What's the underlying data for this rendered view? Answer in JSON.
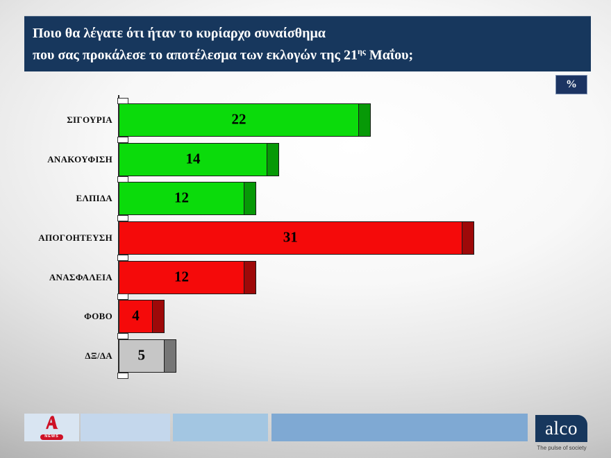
{
  "header": {
    "title_line1": "Ποιο θα λέγατε ότι ήταν το κυρίαρχο συναίσθημα",
    "title_line2_pre": "που σας προκάλεσε το αποτέλεσμα των εκλογών της 21",
    "title_line2_sup": "ης",
    "title_line2_post": " Μαΐου;",
    "bg_color": "#17375d",
    "text_color": "#ffffff"
  },
  "percent_badge": {
    "label": "%",
    "bg_color": "#1c3462"
  },
  "chart_data": {
    "type": "bar",
    "orientation": "horizontal",
    "title": "",
    "categories": [
      "ΣΙΓΟΥΡΙΑ",
      "ΑΝΑΚΟΥΦΙΣΗ",
      "ΕΛΠΙΔΑ",
      "ΑΠΟΓΟΗΤΕΥΣΗ",
      "ΑΝΑΣΦΑΛΕΙΑ",
      "ΦΟΒΟ",
      "ΔΞ/ΔΑ"
    ],
    "values": [
      22,
      14,
      12,
      31,
      12,
      4,
      5
    ],
    "unit": "%",
    "xlim": [
      0,
      31
    ],
    "grid": false,
    "legend": false,
    "data_labels": "inside-center, bold black",
    "bar_colors": [
      "#0bdb0b",
      "#0bdb0b",
      "#0bdb0b",
      "#f50a0a",
      "#f50a0a",
      "#f50a0a",
      "#c6c6c6"
    ],
    "cap_colors": [
      "#079907",
      "#079907",
      "#079907",
      "#9e0909",
      "#9e0909",
      "#9e0909",
      "#767676"
    ]
  },
  "footer": {
    "alpha_news": {
      "badge_text": "NEWS",
      "logo_color": "#ce1126",
      "box_color": "#d9e5f2"
    },
    "bars": [
      {
        "color": "#c4d7ec"
      },
      {
        "color": "#a3c6e2"
      },
      {
        "color": "#7fa9d3"
      }
    ],
    "alco": {
      "name": "alco",
      "tagline": "The pulse of society",
      "bg_color": "#17375d"
    }
  }
}
